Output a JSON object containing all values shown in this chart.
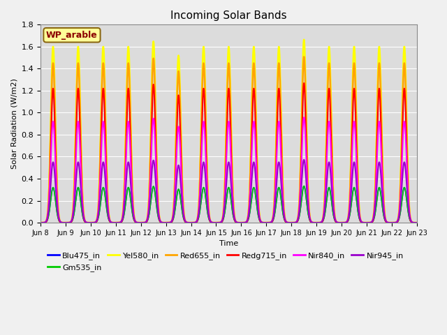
{
  "title": "Incoming Solar Bands",
  "xlabel": "Time",
  "ylabel": "Solar Radiation (W/m2)",
  "ylim": [
    0,
    1.8
  ],
  "legend_label": "WP_arable",
  "legend_label_color": "#8B0000",
  "legend_label_bg": "#FFFF99",
  "num_days": 15,
  "series": [
    {
      "name": "Blu475_in",
      "color": "#0000FF",
      "lw": 1.2,
      "peak_base": 0.32,
      "sigma": 0.1
    },
    {
      "name": "Gm535_in",
      "color": "#00CC00",
      "lw": 1.2,
      "peak_base": 0.32,
      "sigma": 0.1
    },
    {
      "name": "Yel580_in",
      "color": "#FFFF00",
      "lw": 1.8,
      "peak_base": 1.6,
      "sigma": 0.09
    },
    {
      "name": "Red655_in",
      "color": "#FFA500",
      "lw": 1.8,
      "peak_base": 1.45,
      "sigma": 0.09
    },
    {
      "name": "Redg715_in",
      "color": "#FF0000",
      "lw": 1.5,
      "peak_base": 1.22,
      "sigma": 0.085
    },
    {
      "name": "Nir840_in",
      "color": "#FF00FF",
      "lw": 1.5,
      "peak_base": 0.92,
      "sigma": 0.095
    },
    {
      "name": "Nir945_in",
      "color": "#9900CC",
      "lw": 1.5,
      "peak_base": 0.55,
      "sigma": 0.1
    }
  ],
  "peak_variations": [
    [
      1.0,
      1.0,
      1.0,
      1.0,
      1.03,
      0.95,
      1.0,
      1.0,
      1.0,
      1.0,
      1.04,
      1.0,
      1.0,
      1.0,
      1.0
    ],
    [
      1.0,
      1.0,
      1.0,
      1.0,
      1.03,
      0.95,
      1.0,
      1.0,
      1.0,
      1.0,
      1.04,
      1.0,
      1.0,
      1.0,
      1.0
    ],
    [
      1.0,
      1.0,
      1.0,
      1.0,
      1.03,
      0.95,
      1.0,
      1.0,
      1.0,
      1.0,
      1.04,
      1.0,
      1.0,
      1.0,
      1.0
    ],
    [
      1.0,
      1.0,
      1.0,
      1.0,
      1.03,
      0.95,
      1.0,
      1.0,
      1.0,
      1.0,
      1.04,
      1.0,
      1.0,
      1.0,
      1.0
    ],
    [
      1.0,
      1.0,
      1.0,
      1.0,
      1.03,
      0.95,
      1.0,
      1.0,
      1.0,
      1.0,
      1.04,
      1.0,
      1.0,
      1.0,
      1.0
    ],
    [
      1.0,
      1.0,
      1.0,
      1.0,
      1.03,
      0.95,
      1.0,
      1.0,
      1.0,
      1.0,
      1.04,
      1.0,
      1.0,
      1.0,
      1.0
    ],
    [
      1.0,
      1.0,
      1.0,
      1.0,
      1.03,
      0.95,
      1.0,
      1.0,
      1.0,
      1.0,
      1.04,
      1.0,
      1.0,
      1.0,
      1.0
    ]
  ],
  "x_tick_labels": [
    "Jun 8",
    "Jun 9",
    "Jun 10",
    "Jun 11",
    "Jun 12",
    "Jun 13",
    "Jun 14",
    "Jun 15",
    "Jun 16",
    "Jun 17",
    "Jun 18",
    "Jun 19",
    "Jun 20",
    "Jun 21",
    "Jun 22",
    "Jun 23"
  ],
  "background_color": "#DCDCDC",
  "grid_color": "#FFFFFF",
  "fig_bg": "#F0F0F0"
}
